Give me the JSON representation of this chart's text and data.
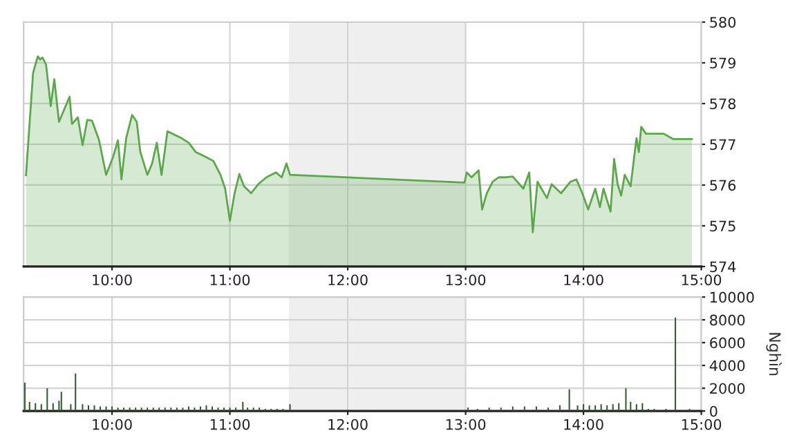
{
  "chart_data": [
    {
      "type": "area",
      "series": [
        {
          "color": "#5aa84a",
          "x": [
            9.27,
            9.33,
            9.37,
            9.39,
            9.41,
            9.44,
            9.48,
            9.51,
            9.55,
            9.64,
            9.66,
            9.71,
            9.75,
            9.79,
            9.83,
            9.89,
            9.95,
            10.01,
            10.05,
            10.08,
            10.12,
            10.17,
            10.21,
            10.24,
            10.3,
            10.34,
            10.38,
            10.42,
            10.47,
            10.59,
            10.65,
            10.71,
            10.79,
            10.86,
            10.92,
            10.96,
            11.0,
            11.04,
            11.08,
            11.12,
            11.18,
            11.24,
            11.31,
            11.39,
            11.44,
            11.48,
            11.51,
            12.99,
            13.01,
            13.05,
            13.11,
            13.14,
            13.18,
            13.23,
            13.28,
            13.34,
            13.4,
            13.49,
            13.54,
            13.57,
            13.61,
            13.69,
            13.73,
            13.81,
            13.89,
            13.94,
            13.99,
            14.04,
            14.1,
            14.14,
            14.17,
            14.23,
            14.26,
            14.29,
            14.32,
            14.35,
            14.4,
            14.45,
            14.47,
            14.49,
            14.53,
            14.68,
            14.76,
            14.92
          ],
          "values": [
            576.24,
            578.75,
            579.16,
            579.08,
            579.13,
            578.96,
            577.94,
            578.6,
            577.55,
            578.17,
            577.5,
            577.66,
            576.98,
            577.6,
            577.58,
            577.1,
            576.25,
            576.7,
            577.1,
            576.14,
            577.15,
            577.72,
            577.55,
            576.81,
            576.25,
            576.53,
            577.04,
            576.25,
            577.32,
            577.15,
            577.04,
            576.81,
            576.7,
            576.59,
            576.25,
            575.91,
            575.12,
            575.8,
            576.27,
            575.97,
            575.8,
            576.02,
            576.19,
            576.31,
            576.19,
            576.53,
            576.25,
            576.06,
            576.31,
            576.19,
            576.36,
            575.4,
            575.8,
            576.08,
            576.19,
            576.19,
            576.21,
            575.91,
            576.31,
            574.84,
            576.08,
            575.68,
            576.02,
            575.8,
            576.08,
            576.14,
            575.8,
            575.4,
            575.91,
            575.46,
            575.91,
            575.35,
            576.64,
            576.02,
            575.74,
            576.25,
            575.97,
            577.15,
            576.81,
            577.43,
            577.26,
            577.26,
            577.13,
            577.13
          ]
        }
      ],
      "xlim": [
        9.25,
        15.0
      ],
      "ylim": [
        574,
        580
      ],
      "xticks": [
        {
          "value": 10,
          "label": "10:00"
        },
        {
          "value": 11,
          "label": "11:00"
        },
        {
          "value": 12,
          "label": "12:00"
        },
        {
          "value": 13,
          "label": "13:00"
        },
        {
          "value": 14,
          "label": "14:00"
        },
        {
          "value": 15,
          "label": "15:00"
        }
      ],
      "yticks": [
        574,
        575,
        576,
        577,
        578,
        579,
        580
      ],
      "grid": true,
      "bands": [
        {
          "axis": "x",
          "from": 11.5,
          "to": 13.0,
          "color": "#efefef"
        }
      ]
    },
    {
      "type": "bar",
      "ylabel": "Nghìn",
      "series": [
        {
          "color": "#2f5a2f",
          "x": [
            9.26,
            9.3,
            9.35,
            9.4,
            9.45,
            9.5,
            9.55,
            9.57,
            9.65,
            9.69,
            9.75,
            9.8,
            9.85,
            9.9,
            9.95,
            10.0,
            10.05,
            10.1,
            10.15,
            10.2,
            10.25,
            10.3,
            10.35,
            10.4,
            10.45,
            10.5,
            10.55,
            10.6,
            10.65,
            10.7,
            10.75,
            10.8,
            10.85,
            10.9,
            10.95,
            11.0,
            11.05,
            11.11,
            11.15,
            11.2,
            11.25,
            11.3,
            11.35,
            11.4,
            11.45,
            11.51,
            13.02,
            13.1,
            13.2,
            13.3,
            13.4,
            13.5,
            13.6,
            13.7,
            13.8,
            13.88,
            13.95,
            14.0,
            14.05,
            14.1,
            14.15,
            14.2,
            14.25,
            14.3,
            14.36,
            14.4,
            14.45,
            14.5,
            14.55,
            14.6,
            14.7,
            14.78,
            14.9
          ],
          "values": [
            2500,
            800,
            700,
            600,
            2000,
            700,
            900,
            1700,
            600,
            3300,
            600,
            500,
            500,
            400,
            400,
            400,
            300,
            300,
            300,
            300,
            300,
            300,
            300,
            300,
            300,
            300,
            300,
            300,
            400,
            300,
            400,
            500,
            400,
            300,
            300,
            300,
            300,
            800,
            300,
            300,
            300,
            200,
            200,
            200,
            200,
            600,
            300,
            200,
            300,
            300,
            400,
            400,
            400,
            300,
            500,
            1900,
            500,
            600,
            500,
            500,
            600,
            500,
            600,
            700,
            2000,
            800,
            600,
            700,
            200,
            200,
            200,
            8200,
            200
          ]
        }
      ],
      "xlim": [
        9.25,
        15.0
      ],
      "ylim": [
        0,
        10000
      ],
      "xticks": [
        {
          "value": 10,
          "label": "10:00"
        },
        {
          "value": 11,
          "label": "11:00"
        },
        {
          "value": 12,
          "label": "12:00"
        },
        {
          "value": 13,
          "label": "13:00"
        },
        {
          "value": 14,
          "label": "14:00"
        },
        {
          "value": 15,
          "label": "15:00"
        }
      ],
      "yticks": [
        0,
        2000,
        4000,
        6000,
        8000,
        10000
      ],
      "grid": true,
      "bands": [
        {
          "axis": "x",
          "from": 11.5,
          "to": 13.0,
          "color": "#efefef"
        }
      ]
    }
  ]
}
